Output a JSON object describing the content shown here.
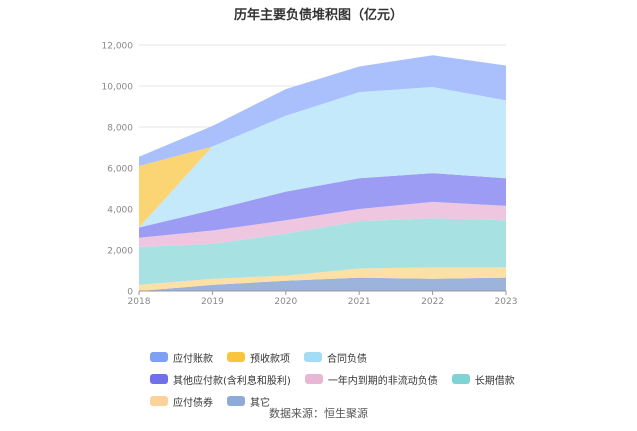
{
  "chart_data": {
    "type": "area",
    "stacked": true,
    "title": "历年主要负债堆积图（亿元）",
    "x": [
      "2018",
      "2019",
      "2020",
      "2021",
      "2022",
      "2023"
    ],
    "yticks": [
      "0",
      "2,000",
      "4,000",
      "6,000",
      "8,000",
      "10,000",
      "12,000"
    ],
    "ylim": [
      0,
      12000
    ],
    "legend_position": "bottom",
    "series": [
      {
        "name": "其它",
        "color": "#9cb4dc",
        "values": [
          0,
          300,
          500,
          650,
          600,
          650
        ]
      },
      {
        "name": "应付债券",
        "color": "#fde0a6",
        "values": [
          300,
          300,
          250,
          450,
          550,
          500
        ]
      },
      {
        "name": "长期借款",
        "color": "#a8e1e1",
        "values": [
          1850,
          1700,
          2050,
          2300,
          2400,
          2300
        ]
      },
      {
        "name": "一年内到期的非流动负债",
        "color": "#efc6e0",
        "values": [
          450,
          650,
          650,
          600,
          800,
          700
        ]
      },
      {
        "name": "其他应付款(含利息和股利)",
        "color": "#9d9cf5",
        "values": [
          500,
          1000,
          1400,
          1500,
          1400,
          1350
        ]
      },
      {
        "name": "合同负债",
        "color": "#c4e9fb",
        "values": [
          0,
          3100,
          3700,
          4200,
          4200,
          3800
        ]
      },
      {
        "name": "预收款项",
        "color": "#fbd574",
        "values": [
          3000,
          0,
          0,
          0,
          0,
          0
        ]
      },
      {
        "name": "应付账款",
        "color": "#a9c0fd",
        "values": [
          450,
          1000,
          1300,
          1250,
          1550,
          1700
        ]
      }
    ]
  },
  "legend_items": [
    {
      "label": "应付账款",
      "color": "#7f9ff5"
    },
    {
      "label": "预收款项",
      "color": "#f8c63c"
    },
    {
      "label": "合同负债",
      "color": "#a4dcf6"
    },
    {
      "label": "其他应付款(含利息和股利)",
      "color": "#7170eb"
    },
    {
      "label": "一年内到期的非流动负债",
      "color": "#e9b7d6"
    },
    {
      "label": "长期借款",
      "color": "#80d3d3"
    },
    {
      "label": "应付债券",
      "color": "#fbd39a"
    },
    {
      "label": "其它",
      "color": "#8eaad9"
    }
  ],
  "source": "数据来源：恒生聚源"
}
